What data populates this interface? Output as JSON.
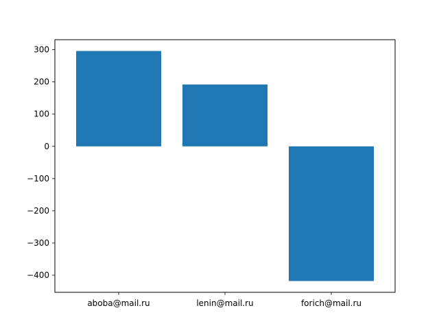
{
  "chart_data": {
    "type": "bar",
    "title": "",
    "xlabel": "",
    "ylabel": "",
    "categories": [
      "aboba@mail.ru",
      "lenin@mail.ru",
      "forich@mail.ru"
    ],
    "values": [
      296,
      192,
      -418
    ],
    "ylim": [
      -453,
      331
    ],
    "yticks": [
      300,
      200,
      100,
      0,
      -100,
      -200,
      -300,
      -400
    ],
    "ytick_labels": [
      "300",
      "200",
      "100",
      "0",
      "−100",
      "−200",
      "−300",
      "−400"
    ],
    "bar_color": "#1f77b4",
    "grid": false,
    "legend": false
  }
}
